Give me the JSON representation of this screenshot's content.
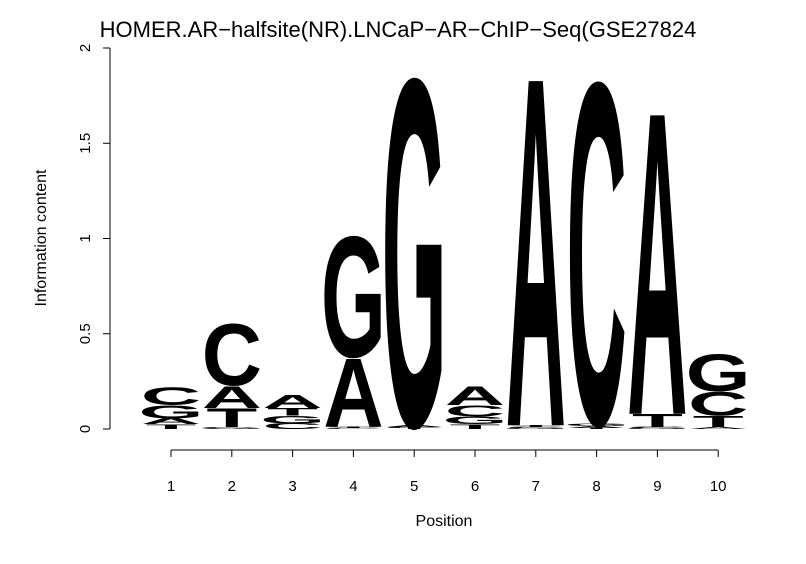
{
  "chart_data": {
    "type": "sequence_logo",
    "title": "HOMER.AR−halfsite(NR).LNCaP−AR−ChIP−Seq(GSE27824",
    "xlabel": "Position",
    "ylabel": "Information content",
    "ylim": [
      0,
      2
    ],
    "yticks": [
      0,
      0.5,
      1,
      1.5,
      2
    ],
    "ytick_labels": [
      "0",
      "0.5",
      "1",
      "1.5",
      "2"
    ],
    "positions": [
      1,
      2,
      3,
      4,
      5,
      6,
      7,
      8,
      9,
      10
    ],
    "colors": {
      "A": "#00ff00",
      "C": "#0000ff",
      "G": "#ffa500",
      "T": "#ff0000"
    },
    "letter_heights": [
      [
        {
          "base": "T",
          "h": 0.025
        },
        {
          "base": "A",
          "h": 0.03
        },
        {
          "base": "G",
          "h": 0.07
        },
        {
          "base": "C",
          "h": 0.095
        }
      ],
      [
        {
          "base": "G",
          "h": 0.01
        },
        {
          "base": "T",
          "h": 0.1
        },
        {
          "base": "A",
          "h": 0.12
        },
        {
          "base": "C",
          "h": 0.33
        }
      ],
      [
        {
          "base": "C",
          "h": 0.03
        },
        {
          "base": "G",
          "h": 0.04
        },
        {
          "base": "T",
          "h": 0.04
        },
        {
          "base": "A",
          "h": 0.07
        }
      ],
      [
        {
          "base": "C",
          "h": 0.005
        },
        {
          "base": "T",
          "h": 0.005
        },
        {
          "base": "A",
          "h": 0.37
        },
        {
          "base": "G",
          "h": 0.65
        }
      ],
      [
        {
          "base": "T",
          "h": 0.005
        },
        {
          "base": "C",
          "h": 0.005
        },
        {
          "base": "A",
          "h": 0.01
        },
        {
          "base": "G",
          "h": 1.87
        }
      ],
      [
        {
          "base": "T",
          "h": 0.025
        },
        {
          "base": "G",
          "h": 0.04
        },
        {
          "base": "C",
          "h": 0.06
        },
        {
          "base": "A",
          "h": 0.1
        }
      ],
      [
        {
          "base": "G",
          "h": 0.005
        },
        {
          "base": "C",
          "h": 0.005
        },
        {
          "base": "T",
          "h": 0.01
        },
        {
          "base": "A",
          "h": 1.88
        }
      ],
      [
        {
          "base": "T",
          "h": 0.005
        },
        {
          "base": "A",
          "h": 0.01
        },
        {
          "base": "G",
          "h": 0.015
        },
        {
          "base": "C",
          "h": 1.84
        }
      ],
      [
        {
          "base": "G",
          "h": 0.005
        },
        {
          "base": "C",
          "h": 0.005
        },
        {
          "base": "T",
          "h": 0.07
        },
        {
          "base": "A",
          "h": 1.63
        }
      ],
      [
        {
          "base": "A",
          "h": 0.01
        },
        {
          "base": "T",
          "h": 0.06
        },
        {
          "base": "C",
          "h": 0.13
        },
        {
          "base": "G",
          "h": 0.2
        }
      ]
    ]
  }
}
